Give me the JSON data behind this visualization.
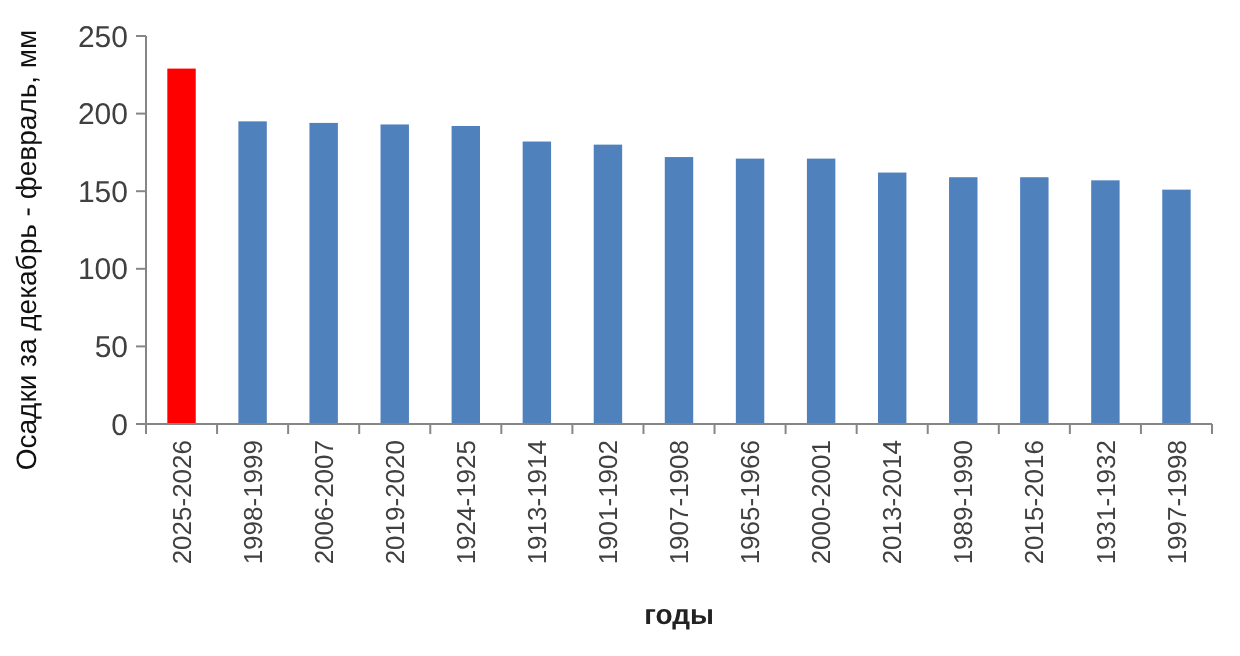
{
  "chart_data": {
    "type": "bar",
    "xlabel": "годы",
    "ylabel": "Осадки за декабрь - февраль, мм",
    "categories": [
      "2025-2026",
      "1998-1999",
      "2006-2007",
      "2019-2020",
      "1924-1925",
      "1913-1914",
      "1901-1902",
      "1907-1908",
      "1965-1966",
      "2000-2001",
      "2013-2014",
      "1989-1990",
      "2015-2016",
      "1931-1932",
      "1997-1998"
    ],
    "values": [
      229,
      195,
      194,
      193,
      192,
      182,
      180,
      172,
      171,
      171,
      162,
      159,
      159,
      157,
      151
    ],
    "colors": [
      "#ff0000",
      "#4f81bd",
      "#4f81bd",
      "#4f81bd",
      "#4f81bd",
      "#4f81bd",
      "#4f81bd",
      "#4f81bd",
      "#4f81bd",
      "#4f81bd",
      "#4f81bd",
      "#4f81bd",
      "#4f81bd",
      "#4f81bd",
      "#4f81bd"
    ],
    "ylim": [
      0,
      250
    ],
    "yticks": [
      0,
      50,
      100,
      150,
      200,
      250
    ],
    "grid": false
  }
}
